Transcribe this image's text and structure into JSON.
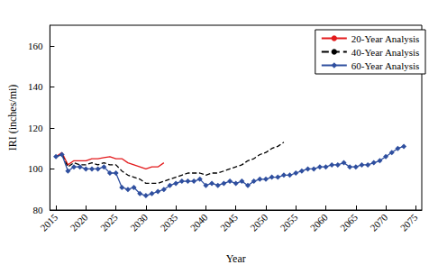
{
  "chart_data": {
    "type": "line",
    "x_label": "Year",
    "y_label": "IRI (inches/mi)",
    "x": [
      2015,
      2016,
      2017,
      2018,
      2019,
      2020,
      2021,
      2022,
      2023,
      2024,
      2025,
      2026,
      2027,
      2028,
      2029,
      2030,
      2031,
      2032,
      2033,
      2034,
      2035,
      2036,
      2037,
      2038,
      2039,
      2040,
      2041,
      2042,
      2043,
      2044,
      2045,
      2046,
      2047,
      2048,
      2049,
      2050,
      2051,
      2052,
      2053,
      2054,
      2055,
      2056,
      2057,
      2058,
      2059,
      2060,
      2061,
      2062,
      2063,
      2064,
      2065,
      2066,
      2067,
      2068,
      2069,
      2070,
      2071,
      2072,
      2073
    ],
    "series": [
      {
        "name": "20-Year Analysis",
        "color": "#e31a1c",
        "line_style": "solid",
        "values": [
          106,
          108,
          102,
          104,
          104,
          104,
          105,
          105,
          105.5,
          106,
          105,
          105,
          103,
          102,
          101,
          100,
          101,
          101,
          103,
          null,
          null,
          null,
          null,
          null,
          null,
          null,
          null,
          null,
          null,
          null,
          null,
          null,
          null,
          null,
          null,
          null,
          null,
          null,
          null,
          null,
          null,
          null,
          null,
          null,
          null,
          null,
          null,
          null,
          null,
          null,
          null,
          null,
          null,
          null,
          null,
          null,
          null,
          null,
          null
        ]
      },
      {
        "name": "40-Year Analysis",
        "color": "#000000",
        "line_style": "dashed",
        "values": [
          106,
          107,
          101,
          103,
          102,
          102,
          103,
          102,
          103,
          102,
          102,
          99,
          97,
          96,
          95,
          93,
          93,
          93,
          94,
          95,
          96,
          97,
          98,
          98,
          98,
          97,
          98,
          98,
          99,
          100,
          101,
          102,
          104,
          105,
          107,
          108,
          110,
          111,
          113,
          null,
          null,
          null,
          null,
          null,
          null,
          null,
          null,
          null,
          null,
          null,
          null,
          null,
          null,
          null,
          null,
          null,
          null,
          null,
          null
        ]
      },
      {
        "name": "60-Year Analysis",
        "color": "#2f4f9f",
        "line_style": "solid",
        "marker": "diamond",
        "values": [
          106,
          107,
          99,
          101,
          101,
          100,
          100,
          100,
          101,
          98,
          98,
          91,
          90,
          91,
          88,
          87,
          88,
          89,
          90,
          92,
          93,
          94,
          94,
          94,
          95,
          92,
          93,
          92,
          93,
          94,
          93,
          94,
          92,
          94,
          95,
          95,
          96,
          96,
          97,
          97,
          98,
          99,
          100,
          100,
          101,
          101,
          102,
          102,
          103,
          101,
          101,
          102,
          102,
          103,
          104,
          106,
          108,
          110,
          111
        ]
      }
    ],
    "xlim": [
      2014,
      2076
    ],
    "xticks": [
      2015,
      2020,
      2025,
      2030,
      2035,
      2040,
      2045,
      2050,
      2055,
      2060,
      2065,
      2070,
      2075
    ],
    "ylim": [
      80,
      170
    ],
    "yticks": [
      80,
      100,
      120,
      140,
      160
    ],
    "grid": false,
    "legend": "upper right"
  }
}
